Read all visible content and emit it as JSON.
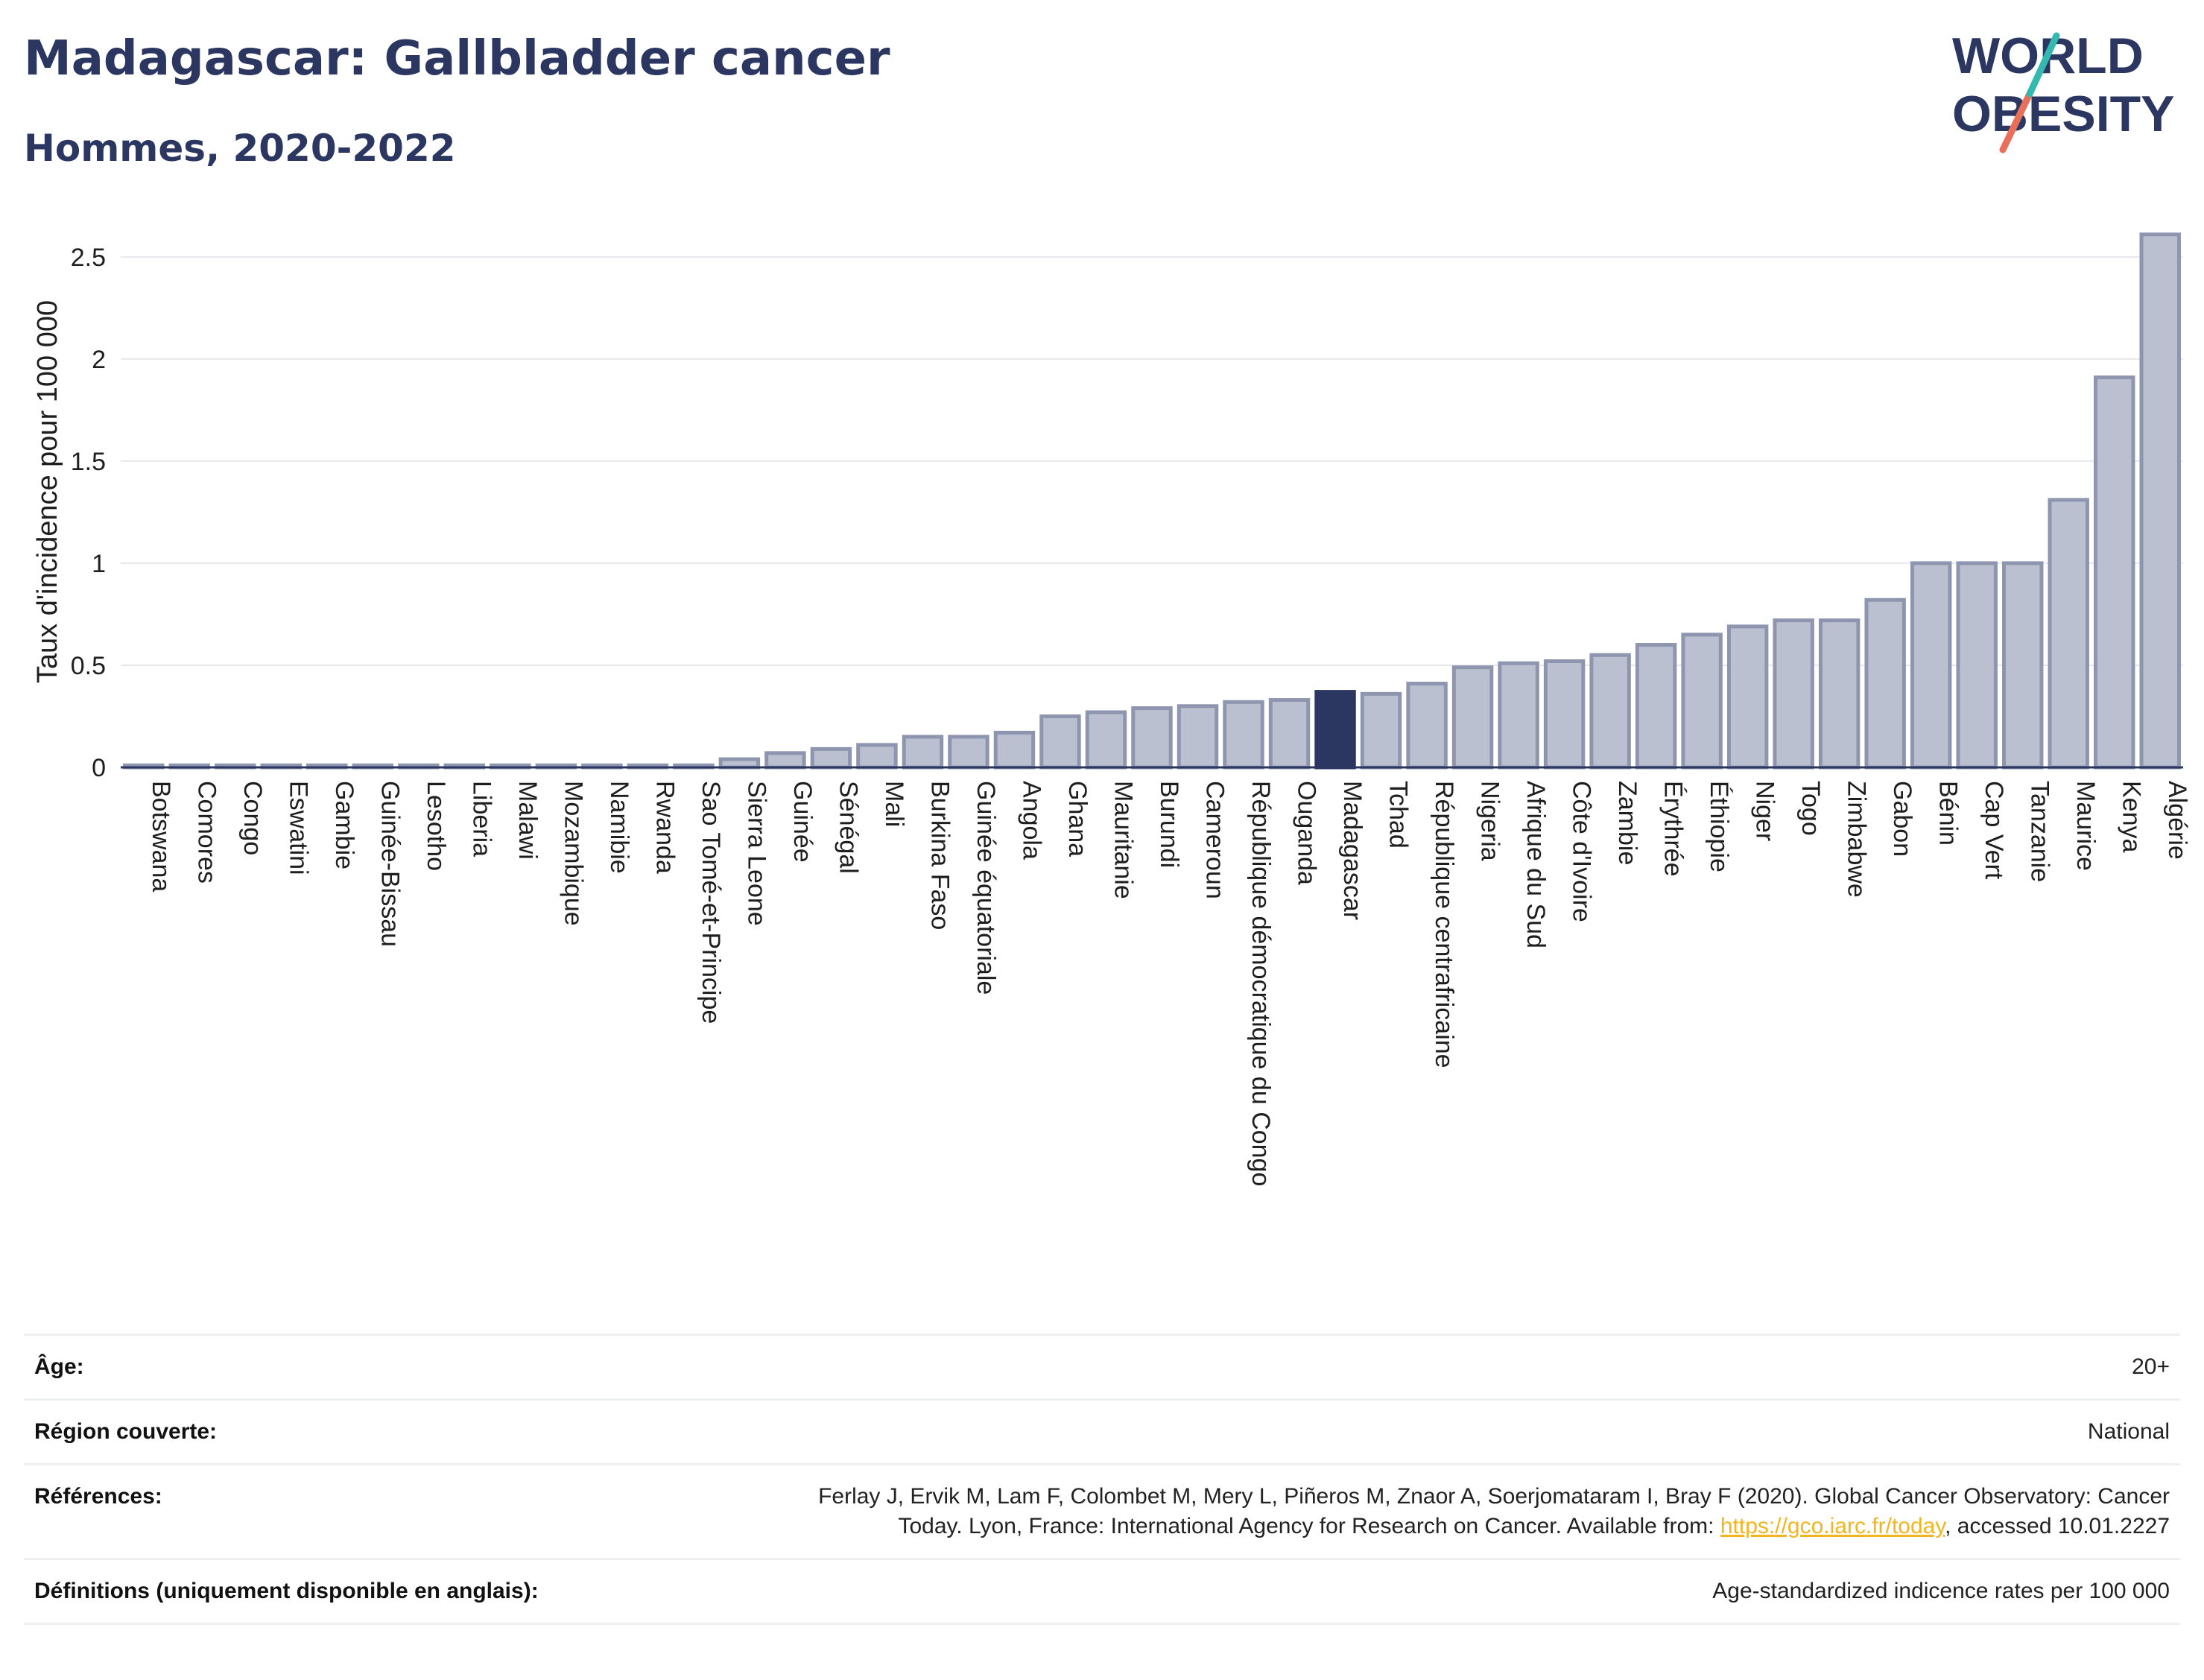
{
  "title": "Madagascar: Gallbladder cancer",
  "subtitle": "Hommes, 2020-2022",
  "logo": {
    "line1": "WORLD",
    "line2": "OBESITY"
  },
  "colors": {
    "title": "#2b3760",
    "bar": "#bbc0d0",
    "bar_stroke": "#8e95af",
    "highlight": "#2b3760",
    "link": "#f2b51e"
  },
  "chart_data": {
    "type": "bar",
    "ylabel": "Taux d'incidence pour 100 000",
    "ylim": [
      0,
      2.6
    ],
    "yticks": [
      0,
      0.5,
      1,
      1.5,
      2,
      2.5
    ],
    "ytick_labels": [
      "0",
      "0.5",
      "1",
      "1.5",
      "2",
      "2.5"
    ],
    "highlight": "Madagascar",
    "grid": true,
    "categories": [
      "Botswana",
      "Comores",
      "Congo",
      "Eswatini",
      "Gambie",
      "Guinée-Bissau",
      "Lesotho",
      "Liberia",
      "Malawi",
      "Mozambique",
      "Namibie",
      "Rwanda",
      "Sao Tomé-et-Principe",
      "Sierra Leone",
      "Guinée",
      "Sénégal",
      "Mali",
      "Burkina Faso",
      "Guinée équatoriale",
      "Angola",
      "Ghana",
      "Mauritanie",
      "Burundi",
      "Cameroun",
      "République démocratique du Congo",
      "Ouganda",
      "Madagascar",
      "Tchad",
      "République centrafricaine",
      "Nigeria",
      "Afrique du Sud",
      "Côte d'Ivoire",
      "Zambie",
      "Érythrée",
      "Éthiopie",
      "Niger",
      "Togo",
      "Zimbabwe",
      "Gabon",
      "Bénin",
      "Cap Vert",
      "Tanzanie",
      "Maurice",
      "Kenya",
      "Algérie"
    ],
    "values": [
      0.01,
      0.01,
      0.01,
      0.01,
      0.01,
      0.01,
      0.01,
      0.01,
      0.01,
      0.01,
      0.01,
      0.01,
      0.01,
      0.04,
      0.07,
      0.09,
      0.11,
      0.15,
      0.15,
      0.17,
      0.25,
      0.27,
      0.29,
      0.3,
      0.32,
      0.33,
      0.37,
      0.36,
      0.41,
      0.49,
      0.51,
      0.52,
      0.55,
      0.6,
      0.65,
      0.69,
      0.72,
      0.72,
      0.82,
      1.0,
      1.0,
      1.0,
      1.31,
      1.91,
      2.61
    ]
  },
  "meta": {
    "age_label": "Âge:",
    "age_value": "20+",
    "region_label": "Région couverte:",
    "region_value": "National",
    "refs_label": "Références:",
    "refs_line1": "Ferlay J, Ervik M, Lam F, Colombet M, Mery L, Piñeros M, Znaor A, Soerjomataram I, Bray F (2020). Global Cancer Observatory: Cancer",
    "refs_line2_pre": "Today. Lyon, France: International Agency for Research on Cancer. Available from: ",
    "refs_link": "https://gco.iarc.fr/today",
    "refs_line2_post": ", accessed 10.01.2227",
    "defs_label": "Définitions (uniquement disponible en anglais):",
    "defs_value": "Age-standardized indicence rates per 100 000"
  }
}
